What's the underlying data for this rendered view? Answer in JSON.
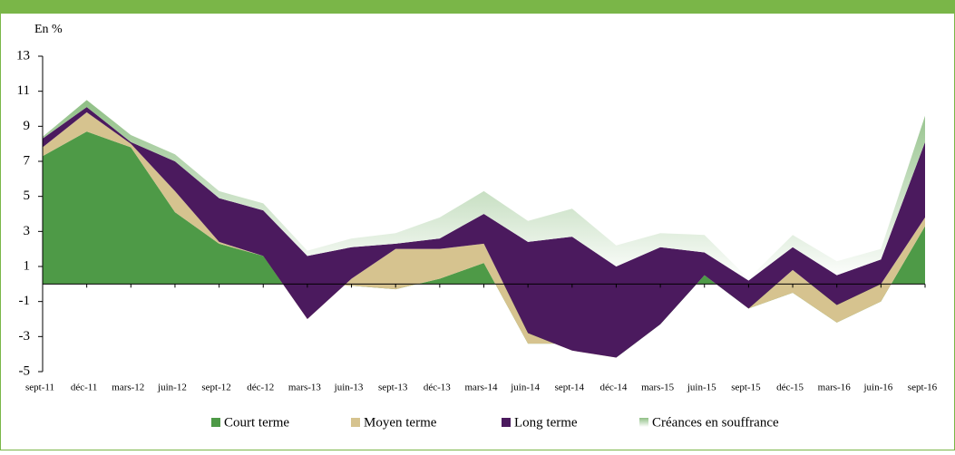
{
  "chart_data": {
    "type": "stacked_area",
    "y_label": "En %",
    "categories": [
      "sept-11",
      "déc-11",
      "mars-12",
      "juin-12",
      "sept-12",
      "déc-12",
      "mars-13",
      "juin-13",
      "sept-13",
      "déc-13",
      "mars-14",
      "juin-14",
      "sept-14",
      "déc-14",
      "mars-15",
      "juin-15",
      "sept-15",
      "déc-15",
      "mars-16",
      "juin-16",
      "sept-16"
    ],
    "series": [
      {
        "name": "Court terme",
        "color": "#4e9a47",
        "values": [
          7.3,
          8.7,
          7.8,
          4.1,
          2.3,
          1.6,
          0,
          -0.1,
          -0.3,
          0.3,
          1.2,
          -3.4,
          -3.4,
          -4.2,
          -2.3,
          0.5,
          -1.4,
          -0.5,
          -2.2,
          -1.0,
          3.3
        ]
      },
      {
        "name": "Moyen terme",
        "color": "#d6c38f",
        "values": [
          0.5,
          1.1,
          0.2,
          1.2,
          0.1,
          0,
          -2.0,
          0.4,
          2.3,
          1.7,
          1.1,
          0.6,
          -0.4,
          0,
          0,
          0,
          0,
          1.3,
          1.0,
          1.0,
          0.5
        ]
      },
      {
        "name": "Long terme",
        "color": "#4b1a5e",
        "values": [
          0.5,
          0.3,
          0.1,
          1.7,
          2.5,
          2.6,
          3.6,
          1.8,
          0.3,
          0.6,
          1.7,
          5.2,
          6.5,
          5.2,
          4.4,
          1.3,
          1.6,
          1.3,
          1.7,
          1.4,
          4.3
        ]
      },
      {
        "name": "Créances en souffrance",
        "color": "#8fbf85",
        "values": [
          0.1,
          0.4,
          0.4,
          0.4,
          0.4,
          0.4,
          0.3,
          0.5,
          0.6,
          1.2,
          1.3,
          1.2,
          1.6,
          1.2,
          0.8,
          1.0,
          0.1,
          0.7,
          0.8,
          0.6,
          1.5
        ]
      }
    ],
    "ylim": [
      -5,
      13
    ],
    "yticks": [
      13,
      11,
      9,
      7,
      5,
      3,
      1,
      -1,
      -3,
      -5
    ]
  }
}
